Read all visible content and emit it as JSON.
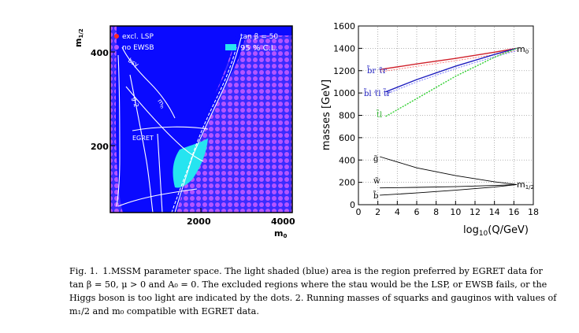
{
  "left_plot": {
    "y_axis_label": "m",
    "y_axis_sub": "1/2",
    "x_axis_label": "m",
    "x_axis_sub": "0",
    "y_ticks": [
      {
        "value": 400,
        "label": "400"
      },
      {
        "value": 200,
        "label": "200"
      }
    ],
    "x_ticks": [
      {
        "value": 2000,
        "label": "2000"
      },
      {
        "value": 4000,
        "label": "4000"
      }
    ],
    "legend": {
      "excl_lsp": "excl. LSP",
      "no_ewsb": "no EWSB",
      "tanb": "tan β = 50",
      "cl": "95 % C.L."
    },
    "curve_labels": {
      "bsy": "bsγ",
      "g2": "g-2",
      "mh": "m",
      "mh_sub": "h",
      "egret": "EGRET"
    },
    "colors": {
      "background": "#0a0aff",
      "dots": "#b455ff",
      "cl_region": "#26e4f0",
      "curves": "#ffffff"
    }
  },
  "chart_data": {
    "type": "line",
    "ylabel": "masses [GeV]",
    "xlabel": "log",
    "xlabel_sub": "10",
    "xlabel_tail": "(Q/GeV)",
    "x_ticks": [
      0,
      2,
      4,
      6,
      8,
      10,
      12,
      14,
      16,
      18
    ],
    "y_ticks": [
      0,
      200,
      400,
      600,
      800,
      1000,
      1200,
      1400,
      1600
    ],
    "xlim": [
      0,
      18
    ],
    "ylim": [
      0,
      1600
    ],
    "grid": true,
    "end_labels": {
      "m0": "m",
      "m0_sub": "0",
      "m12": "m",
      "m12_sub": "1/2"
    },
    "series": [
      {
        "name": "b̃r τ̃r",
        "color": "#d0202a",
        "x": [
          2.2,
          6,
          10,
          14,
          16.3
        ],
        "y": [
          1210,
          1260,
          1310,
          1365,
          1400
        ]
      },
      {
        "name": "b̃l τ̃l t̃r",
        "color": "#2020c0",
        "x": [
          2.8,
          6,
          10,
          14,
          16.3
        ],
        "y": [
          1010,
          1120,
          1240,
          1345,
          1400
        ]
      },
      {
        "name": "t̃l",
        "color": "#30d030",
        "x": [
          2.8,
          6,
          10,
          14,
          16.3
        ],
        "y": [
          790,
          950,
          1150,
          1320,
          1400
        ]
      },
      {
        "name": "g̃",
        "color": "#000000",
        "x": [
          2.2,
          6,
          10,
          14,
          16.3
        ],
        "y": [
          430,
          330,
          260,
          205,
          180
        ]
      },
      {
        "name": "w̃",
        "color": "#000000",
        "x": [
          2.2,
          6,
          10,
          14,
          16.3
        ],
        "y": [
          150,
          155,
          162,
          172,
          180
        ]
      },
      {
        "name": "b̃",
        "color": "#000000",
        "x": [
          2.2,
          6,
          10,
          14,
          16.3
        ],
        "y": [
          85,
          105,
          130,
          158,
          180
        ]
      }
    ]
  },
  "caption": {
    "label": "Fig. 1.",
    "text": "1.MSSM parameter space. The light shaded (blue) area is the region preferred by EGRET data for tan β = 50, μ > 0 and A₀ = 0. The excluded regions where the stau would be the LSP, or EWSB fails, or the Higgs boson is too light are indicated by the dots. 2. Running masses of squarks and gauginos with values of m₁/2 and m₀ compatible with EGRET data."
  }
}
